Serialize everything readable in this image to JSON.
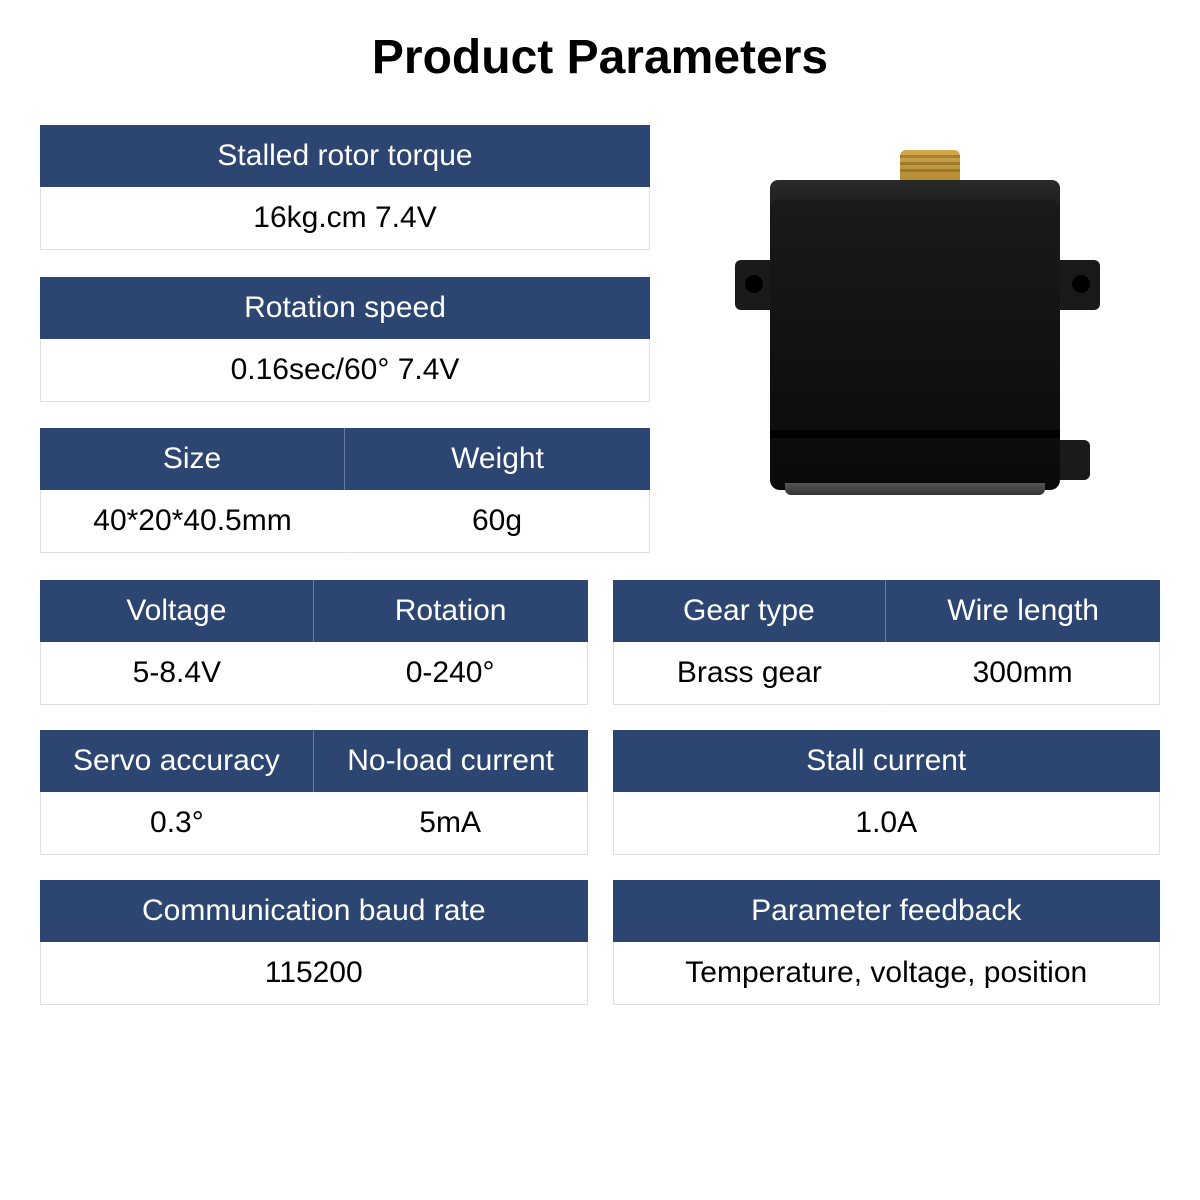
{
  "title": "Product Parameters",
  "colors": {
    "header_bg": "#2c4571",
    "header_text": "#ffffff",
    "value_bg": "#ffffff",
    "value_text": "#000000",
    "page_bg": "#ffffff"
  },
  "typography": {
    "title_fontsize": 48,
    "title_weight": 700,
    "cell_fontsize": 30
  },
  "params": {
    "torque": {
      "label": "Stalled rotor torque",
      "value": "16kg.cm 7.4V"
    },
    "speed": {
      "label": "Rotation speed",
      "value": "0.16sec/60° 7.4V"
    },
    "size": {
      "label": "Size",
      "value": "40*20*40.5mm"
    },
    "weight": {
      "label": "Weight",
      "value": "60g"
    },
    "voltage": {
      "label": "Voltage",
      "value": "5-8.4V"
    },
    "rotation": {
      "label": "Rotation",
      "value": "0-240°"
    },
    "gear_type": {
      "label": "Gear type",
      "value": "Brass gear"
    },
    "wire_length": {
      "label": "Wire length",
      "value": "300mm"
    },
    "accuracy": {
      "label": "Servo accuracy",
      "value": "0.3°"
    },
    "noload_current": {
      "label": "No-load current",
      "value": "5mA"
    },
    "stall_current": {
      "label": "Stall current",
      "value": "1.0A"
    },
    "baud_rate": {
      "label": "Communication baud rate",
      "value": "115200"
    },
    "feedback": {
      "label": "Parameter feedback",
      "value": "Temperature, voltage, position"
    }
  },
  "product_image": {
    "description": "servo-motor",
    "body_color": "#1a1a1a",
    "gear_color": "#d4a84a"
  }
}
